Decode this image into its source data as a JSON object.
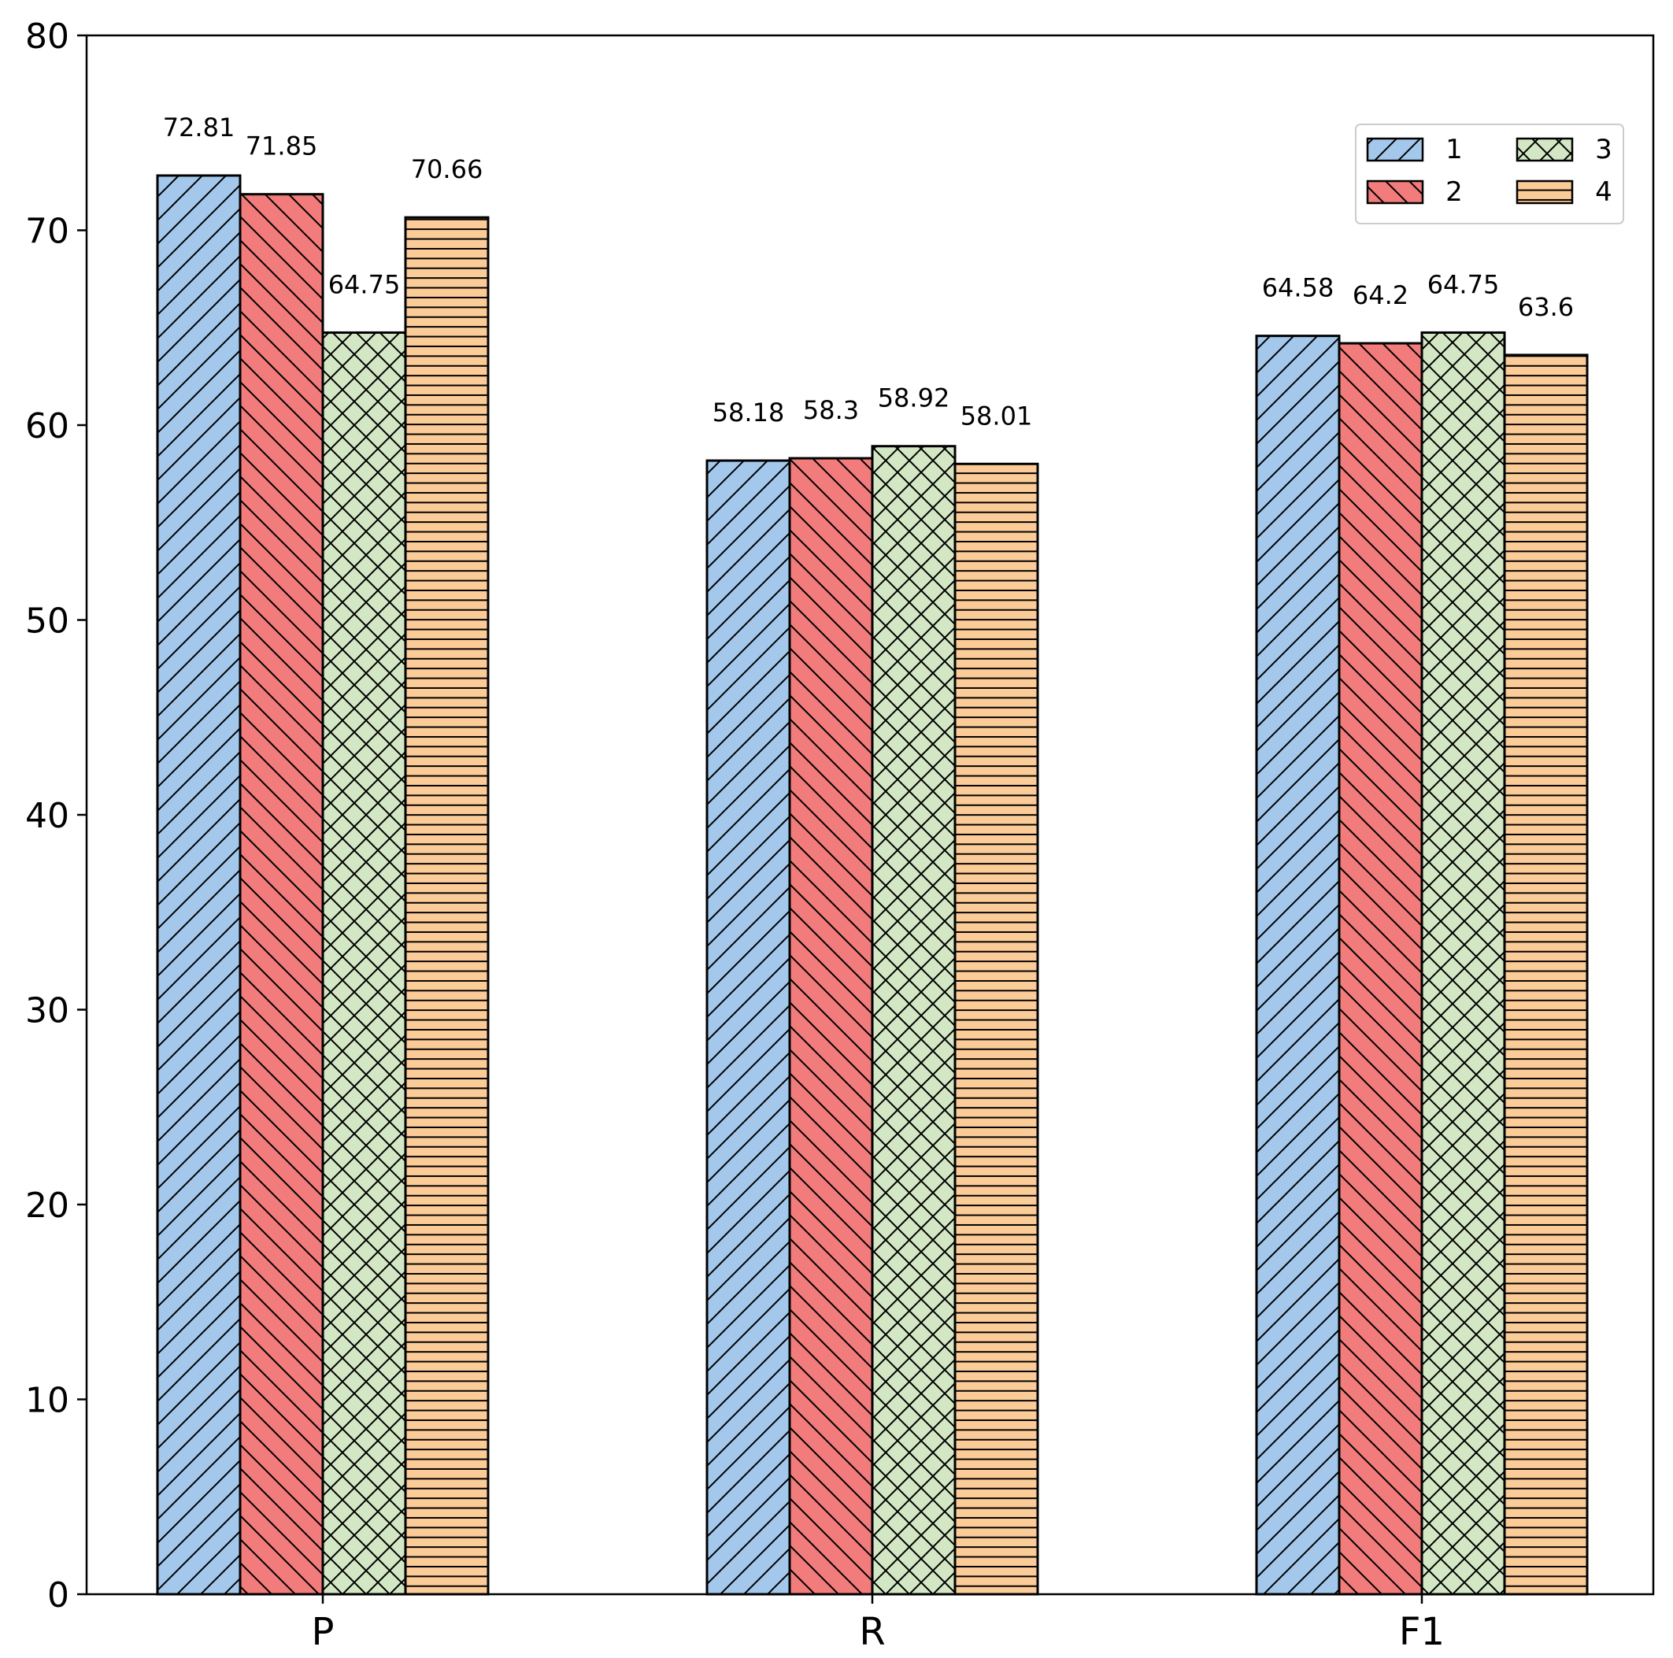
{
  "chart_data": {
    "type": "bar",
    "title": "",
    "xlabel": "",
    "ylabel": "",
    "categories": [
      "P",
      "R",
      "F1"
    ],
    "series": [
      {
        "name": "1",
        "values": [
          72.81,
          58.18,
          64.58
        ],
        "color": "#a3c8ec",
        "hatch": "forward-diagonal"
      },
      {
        "name": "2",
        "values": [
          71.85,
          58.3,
          64.2
        ],
        "color": "#f27b7b",
        "hatch": "back-diagonal"
      },
      {
        "name": "3",
        "values": [
          64.75,
          58.92,
          64.75
        ],
        "color": "#d3e7c5",
        "hatch": "cross-diagonal"
      },
      {
        "name": "4",
        "values": [
          70.66,
          58.01,
          63.6
        ],
        "color": "#fbcb98",
        "hatch": "horizontal"
      }
    ],
    "data_labels": [
      [
        "72.81",
        "58.18",
        "64.58"
      ],
      [
        "71.85",
        "58.3",
        "64.2"
      ],
      [
        "64.75",
        "58.92",
        "64.75"
      ],
      [
        "70.66",
        "58.01",
        "63.6"
      ]
    ],
    "ylim": [
      0,
      80
    ],
    "yticks": [
      "0",
      "10",
      "20",
      "30",
      "40",
      "50",
      "60",
      "70",
      "80"
    ],
    "grid": false,
    "legend": {
      "placement": "top-right",
      "columns": 2
    }
  }
}
